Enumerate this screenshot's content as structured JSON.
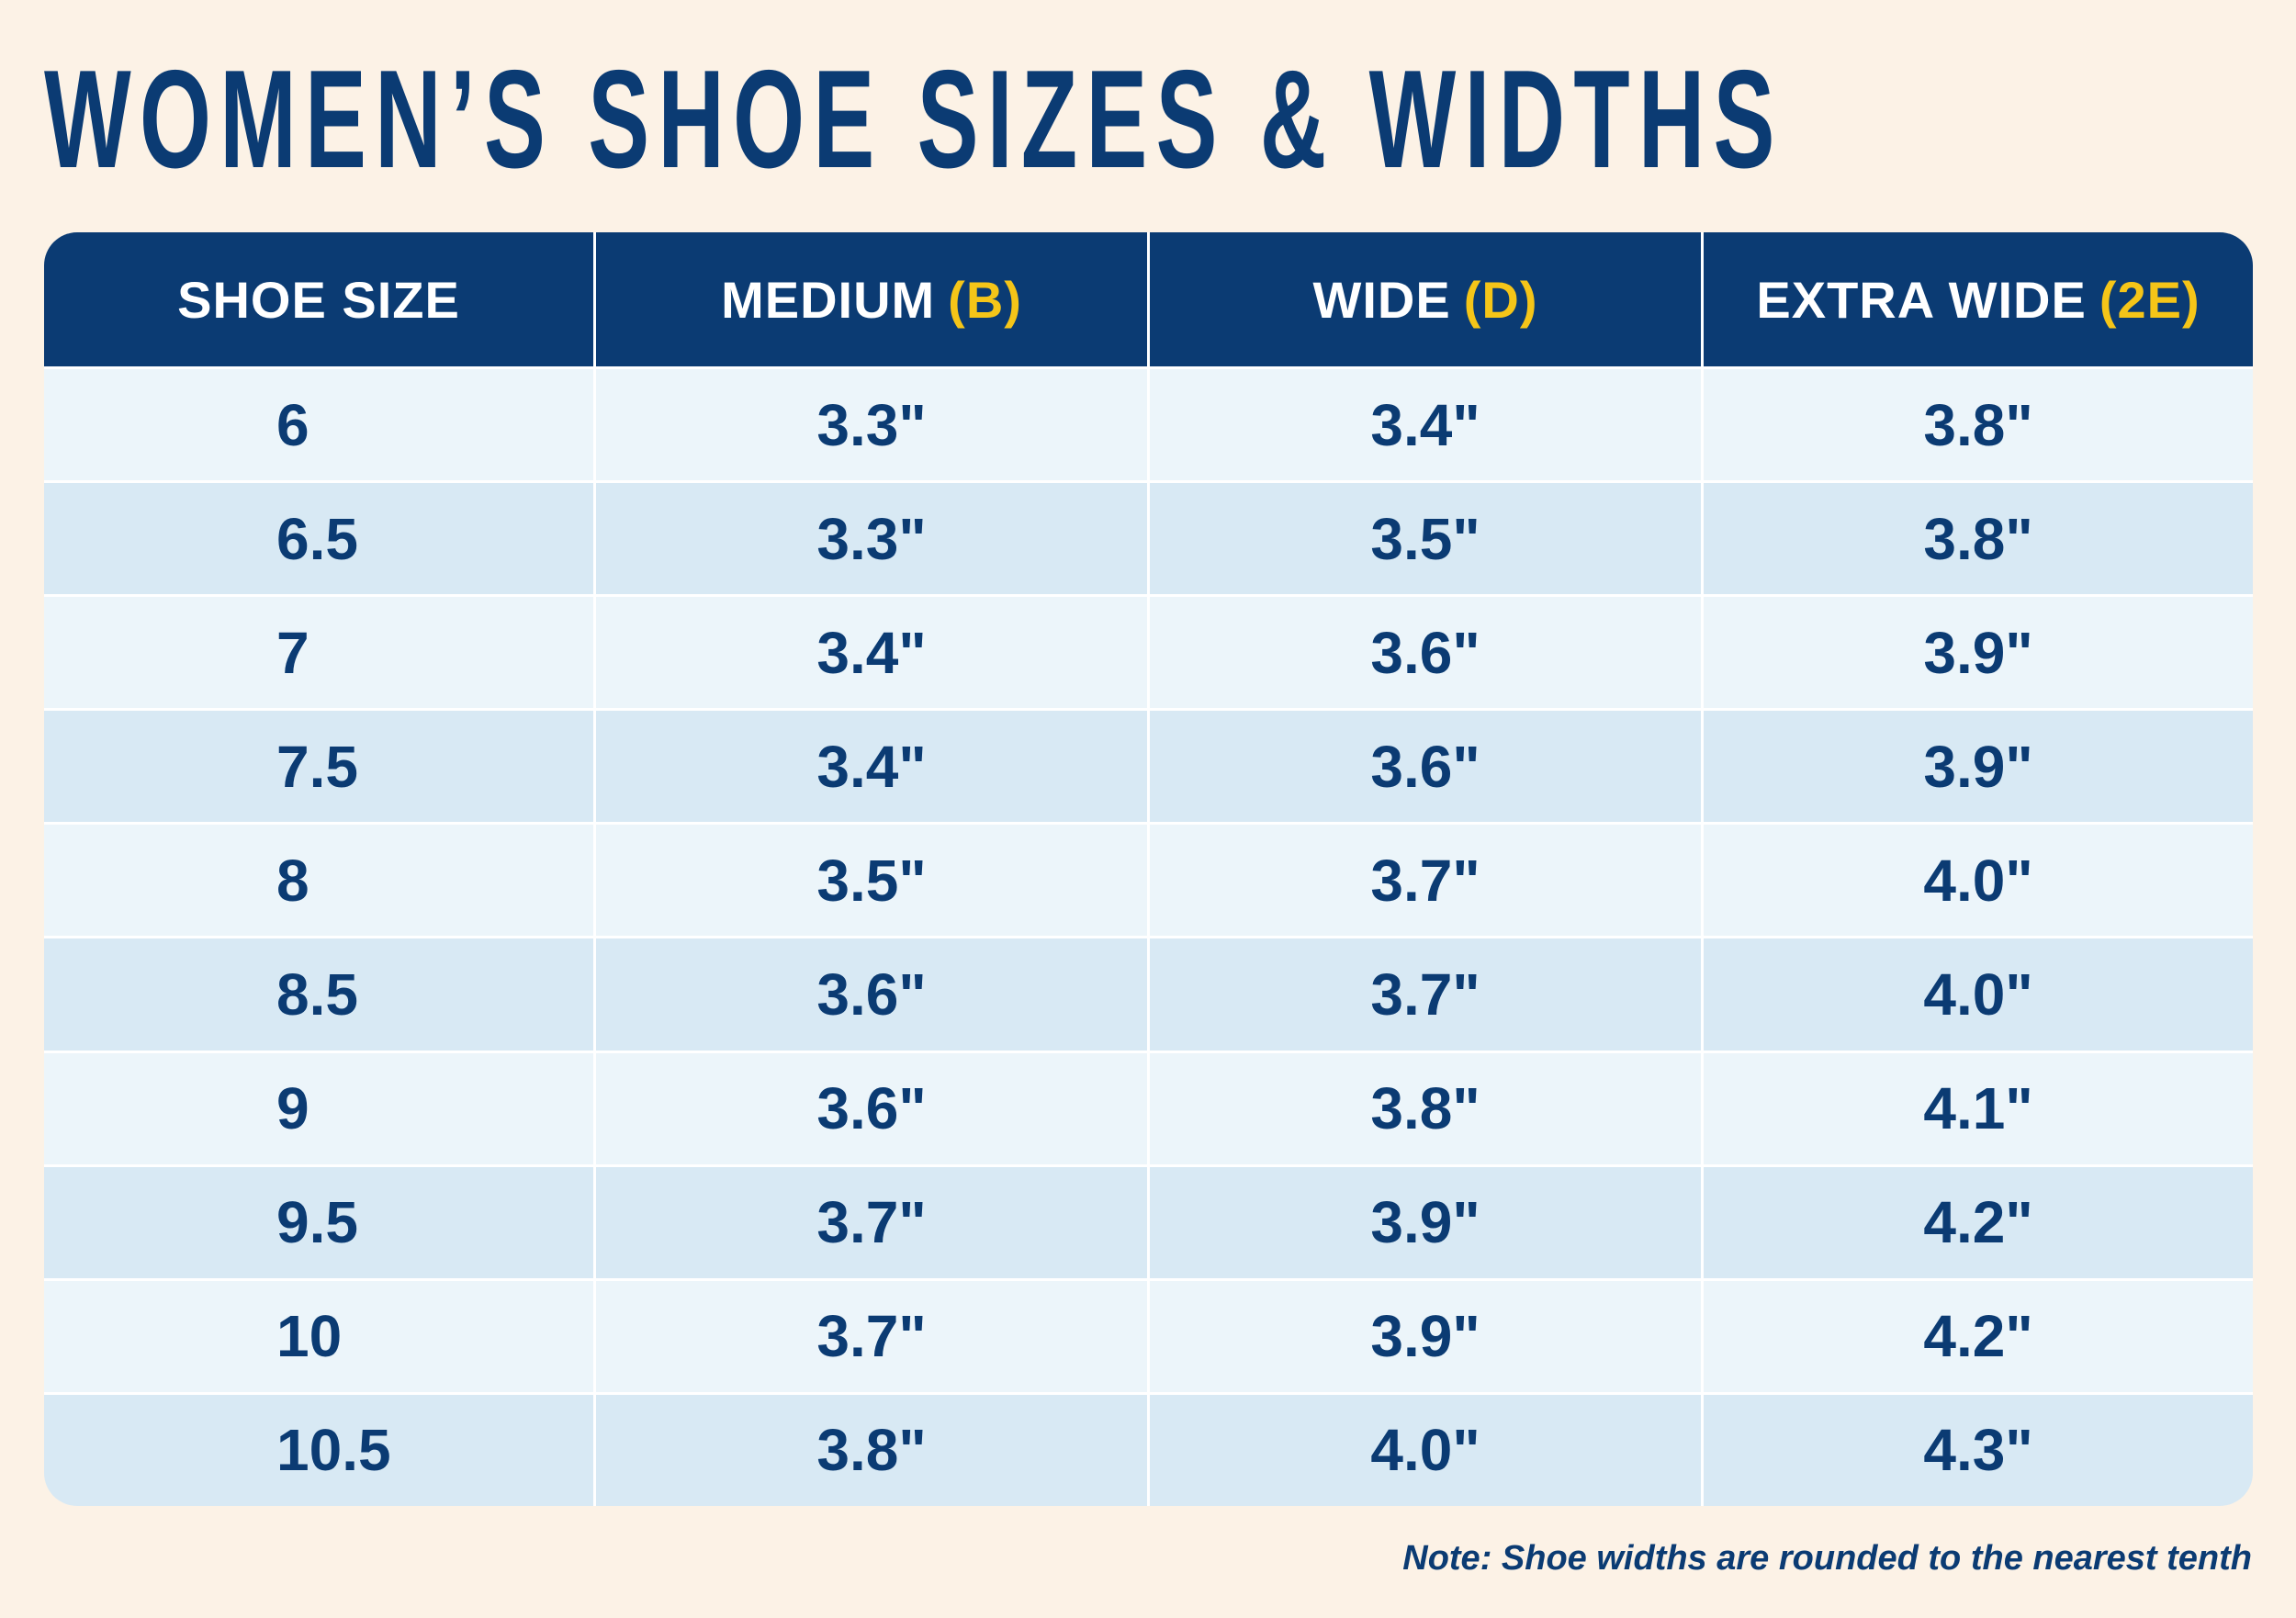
{
  "title": "WOMEN’S SHOE SIZES & WIDTHS",
  "colors": {
    "background": "#fcf2e6",
    "navy": "#0b3b73",
    "accent": "#f5c518",
    "row_light": "#ecf5fa",
    "row_dark": "#d8e9f4"
  },
  "table": {
    "headers": [
      {
        "label": "SHOE SIZE",
        "code": ""
      },
      {
        "label": "MEDIUM",
        "code": "(B)"
      },
      {
        "label": "WIDE",
        "code": "(D)"
      },
      {
        "label": "EXTRA WIDE",
        "code": "(2E)"
      }
    ],
    "rows": [
      [
        "6",
        "3.3\"",
        "3.4\"",
        "3.8\""
      ],
      [
        "6.5",
        "3.3\"",
        "3.5\"",
        "3.8\""
      ],
      [
        "7",
        "3.4\"",
        "3.6\"",
        "3.9\""
      ],
      [
        "7.5",
        "3.4\"",
        "3.6\"",
        "3.9\""
      ],
      [
        "8",
        "3.5\"",
        "3.7\"",
        "4.0\""
      ],
      [
        "8.5",
        "3.6\"",
        "3.7\"",
        "4.0\""
      ],
      [
        "9",
        "3.6\"",
        "3.8\"",
        "4.1\""
      ],
      [
        "9.5",
        "3.7\"",
        "3.9\"",
        "4.2\""
      ],
      [
        "10",
        "3.7\"",
        "3.9\"",
        "4.2\""
      ],
      [
        "10.5",
        "3.8\"",
        "4.0\"",
        "4.3\""
      ]
    ]
  },
  "note": "Note: Shoe widths are rounded to the nearest tenth"
}
